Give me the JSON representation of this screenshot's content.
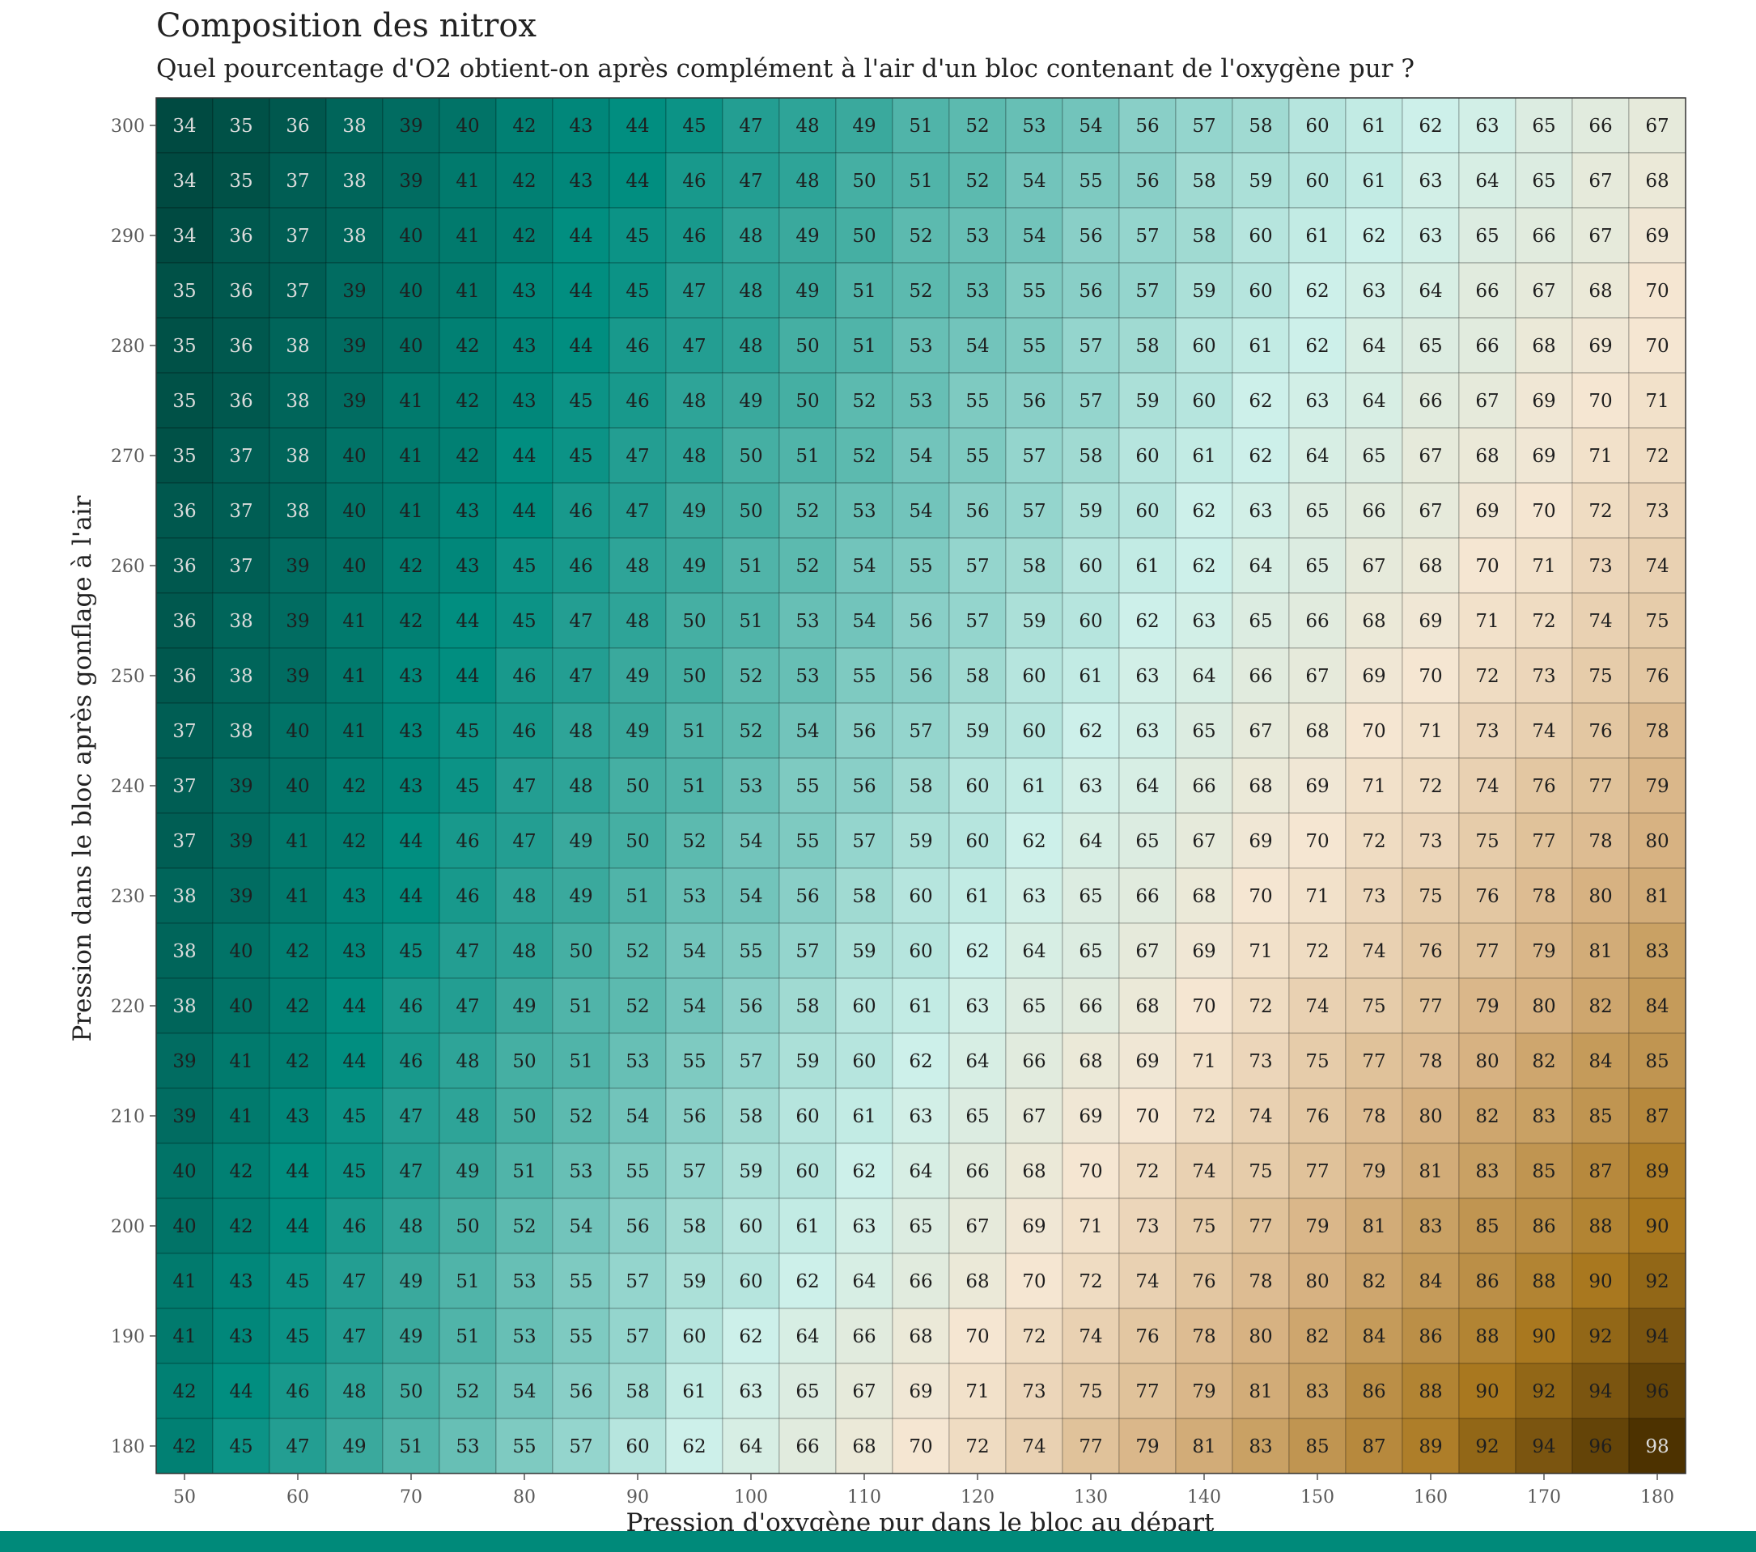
{
  "colors": {
    "low": "#004a41",
    "teal": "#018e80",
    "mid_low": "#cdf0ea",
    "mid_high": "#f5e6d2",
    "tan": "#d7b282",
    "gold": "#a9781f",
    "high": "#4d3200",
    "frame": "#008a7a"
  },
  "chart_data": {
    "type": "heatmap",
    "title": "Composition des nitrox",
    "subtitle": "Quel pourcentage d'O2 obtient-on après complément à l'air d'un bloc contenant de l'oxygène pur ?",
    "xlabel": "Pression d'oxygène pur dans le bloc au départ",
    "ylabel": "Pression dans le bloc après gonflage à l'air",
    "x": [
      50,
      55,
      60,
      65,
      70,
      75,
      80,
      85,
      90,
      95,
      100,
      105,
      110,
      115,
      120,
      125,
      130,
      135,
      140,
      145,
      150,
      155,
      160,
      165,
      170,
      175,
      180
    ],
    "y": [
      300,
      295,
      290,
      285,
      280,
      275,
      270,
      265,
      260,
      255,
      250,
      245,
      240,
      235,
      230,
      225,
      220,
      215,
      210,
      205,
      200,
      195,
      190,
      185,
      180
    ],
    "x_ticks": [
      50,
      60,
      70,
      80,
      90,
      100,
      110,
      120,
      130,
      140,
      150,
      160,
      170,
      180
    ],
    "y_ticks": [
      300,
      290,
      280,
      270,
      260,
      250,
      240,
      230,
      220,
      210,
      200,
      190,
      180
    ],
    "xlim": [
      50,
      180
    ],
    "ylim": [
      180,
      300
    ],
    "values": [
      [
        34,
        35,
        36,
        38,
        39,
        40,
        42,
        43,
        44,
        45,
        47,
        48,
        49,
        51,
        52,
        53,
        54,
        56,
        57,
        58,
        60,
        61,
        62,
        63,
        65,
        66,
        67
      ],
      [
        34,
        35,
        37,
        38,
        39,
        41,
        42,
        43,
        44,
        46,
        47,
        48,
        50,
        51,
        52,
        54,
        55,
        56,
        58,
        59,
        60,
        61,
        63,
        64,
        65,
        67,
        68
      ],
      [
        34,
        36,
        37,
        38,
        40,
        41,
        42,
        44,
        45,
        46,
        48,
        49,
        50,
        52,
        53,
        54,
        56,
        57,
        58,
        60,
        61,
        62,
        63,
        65,
        66,
        67,
        69
      ],
      [
        35,
        36,
        37,
        39,
        40,
        41,
        43,
        44,
        45,
        47,
        48,
        49,
        51,
        52,
        53,
        55,
        56,
        57,
        59,
        60,
        62,
        63,
        64,
        66,
        67,
        68,
        70
      ],
      [
        35,
        36,
        38,
        39,
        40,
        42,
        43,
        44,
        46,
        47,
        48,
        50,
        51,
        53,
        54,
        55,
        57,
        58,
        60,
        61,
        62,
        64,
        65,
        66,
        68,
        69,
        70
      ],
      [
        35,
        36,
        38,
        39,
        41,
        42,
        43,
        45,
        46,
        48,
        49,
        50,
        52,
        53,
        55,
        56,
        57,
        59,
        60,
        62,
        63,
        64,
        66,
        67,
        69,
        70,
        71
      ],
      [
        35,
        37,
        38,
        40,
        41,
        42,
        44,
        45,
        47,
        48,
        50,
        51,
        52,
        54,
        55,
        57,
        58,
        60,
        61,
        62,
        64,
        65,
        67,
        68,
        69,
        71,
        72
      ],
      [
        36,
        37,
        38,
        40,
        41,
        43,
        44,
        46,
        47,
        49,
        50,
        52,
        53,
        54,
        56,
        57,
        59,
        60,
        62,
        63,
        65,
        66,
        67,
        69,
        70,
        72,
        73
      ],
      [
        36,
        37,
        39,
        40,
        42,
        43,
        45,
        46,
        48,
        49,
        51,
        52,
        54,
        55,
        57,
        58,
        60,
        61,
        62,
        64,
        65,
        67,
        68,
        70,
        71,
        73,
        74
      ],
      [
        36,
        38,
        39,
        41,
        42,
        44,
        45,
        47,
        48,
        50,
        51,
        53,
        54,
        56,
        57,
        59,
        60,
        62,
        63,
        65,
        66,
        68,
        69,
        71,
        72,
        74,
        75
      ],
      [
        36,
        38,
        39,
        41,
        43,
        44,
        46,
        47,
        49,
        50,
        52,
        53,
        55,
        56,
        58,
        60,
        61,
        63,
        64,
        66,
        67,
        69,
        70,
        72,
        73,
        75,
        76
      ],
      [
        37,
        38,
        40,
        41,
        43,
        45,
        46,
        48,
        49,
        51,
        52,
        54,
        56,
        57,
        59,
        60,
        62,
        63,
        65,
        67,
        68,
        70,
        71,
        73,
        74,
        76,
        78
      ],
      [
        37,
        39,
        40,
        42,
        43,
        45,
        47,
        48,
        50,
        51,
        53,
        55,
        56,
        58,
        60,
        61,
        63,
        64,
        66,
        68,
        69,
        71,
        72,
        74,
        76,
        77,
        79
      ],
      [
        37,
        39,
        41,
        42,
        44,
        46,
        47,
        49,
        50,
        52,
        54,
        55,
        57,
        59,
        60,
        62,
        64,
        65,
        67,
        69,
        70,
        72,
        73,
        75,
        77,
        78,
        80
      ],
      [
        38,
        39,
        41,
        43,
        44,
        46,
        48,
        49,
        51,
        53,
        54,
        56,
        58,
        60,
        61,
        63,
        65,
        66,
        68,
        70,
        71,
        73,
        75,
        76,
        78,
        80,
        81
      ],
      [
        38,
        40,
        42,
        43,
        45,
        47,
        48,
        50,
        52,
        54,
        55,
        57,
        59,
        60,
        62,
        64,
        65,
        67,
        69,
        71,
        72,
        74,
        76,
        77,
        79,
        81,
        83
      ],
      [
        38,
        40,
        42,
        44,
        46,
        47,
        49,
        51,
        52,
        54,
        56,
        58,
        60,
        61,
        63,
        65,
        66,
        68,
        70,
        72,
        74,
        75,
        77,
        79,
        80,
        82,
        84
      ],
      [
        39,
        41,
        42,
        44,
        46,
        48,
        50,
        51,
        53,
        55,
        57,
        59,
        60,
        62,
        64,
        66,
        68,
        69,
        71,
        73,
        75,
        77,
        78,
        80,
        82,
        84,
        85
      ],
      [
        39,
        41,
        43,
        45,
        47,
        48,
        50,
        52,
        54,
        56,
        58,
        60,
        61,
        63,
        65,
        67,
        69,
        70,
        72,
        74,
        76,
        78,
        80,
        82,
        83,
        85,
        87
      ],
      [
        40,
        42,
        44,
        45,
        47,
        49,
        51,
        53,
        55,
        57,
        59,
        60,
        62,
        64,
        66,
        68,
        70,
        72,
        74,
        75,
        77,
        79,
        81,
        83,
        85,
        87,
        89
      ],
      [
        40,
        42,
        44,
        46,
        48,
        50,
        52,
        54,
        56,
        58,
        60,
        61,
        63,
        65,
        67,
        69,
        71,
        73,
        75,
        77,
        79,
        81,
        83,
        85,
        86,
        88,
        90
      ],
      [
        41,
        43,
        45,
        47,
        49,
        51,
        53,
        55,
        57,
        59,
        60,
        62,
        64,
        66,
        68,
        70,
        72,
        74,
        76,
        78,
        80,
        82,
        84,
        86,
        88,
        90,
        92
      ],
      [
        41,
        43,
        45,
        47,
        49,
        51,
        53,
        55,
        57,
        60,
        62,
        64,
        66,
        68,
        70,
        72,
        74,
        76,
        78,
        80,
        82,
        84,
        86,
        88,
        90,
        92,
        94
      ],
      [
        42,
        44,
        46,
        48,
        50,
        52,
        54,
        56,
        58,
        61,
        63,
        65,
        67,
        69,
        71,
        73,
        75,
        77,
        79,
        81,
        83,
        86,
        88,
        90,
        92,
        94,
        96
      ],
      [
        42,
        45,
        47,
        49,
        51,
        53,
        55,
        57,
        60,
        62,
        64,
        66,
        68,
        70,
        72,
        74,
        77,
        79,
        81,
        83,
        85,
        87,
        89,
        92,
        94,
        96,
        98
      ]
    ],
    "color_scale": "diverging teal to brown",
    "grid": true,
    "legend": "none"
  }
}
